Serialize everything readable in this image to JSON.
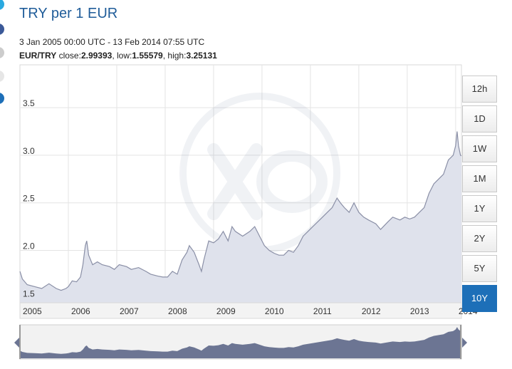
{
  "header": {
    "title": "TRY per 1 EUR",
    "date_range": "3 Jan 2005 00:00 UTC - 13 Feb 2014 07:55 UTC",
    "pair": "EUR/TRY",
    "close_label": "close:",
    "close_value": "2.99393",
    "low_label": "low:",
    "low_value": "1.55579",
    "high_label": "high:",
    "high_value": "3.25131"
  },
  "range_buttons": [
    {
      "label": "12h",
      "active": false
    },
    {
      "label": "1D",
      "active": false
    },
    {
      "label": "1W",
      "active": false
    },
    {
      "label": "1M",
      "active": false
    },
    {
      "label": "1Y",
      "active": false
    },
    {
      "label": "2Y",
      "active": false
    },
    {
      "label": "5Y",
      "active": false
    },
    {
      "label": "10Y",
      "active": true
    }
  ],
  "colors": {
    "line": "#8a8fa6",
    "fill": "#dfe2ec",
    "navigator_fill": "#6c7593",
    "active_button": "#1d6fb8",
    "title": "#1f5c99"
  },
  "chart_data": {
    "type": "area",
    "title": "TRY per 1 EUR",
    "xlabel": "",
    "ylabel": "",
    "xlim": [
      2005.0,
      2014.12
    ],
    "ylim": [
      1.45,
      3.95
    ],
    "y_ticks": [
      "1.5",
      "2.0",
      "2.5",
      "3.0",
      "3.5"
    ],
    "x_ticks": [
      "2005",
      "2006",
      "2007",
      "2008",
      "2009",
      "2010",
      "2011",
      "2012",
      "2013",
      "2014"
    ],
    "grid": true,
    "legend": "none",
    "x": [
      2005.0,
      2005.05,
      2005.15,
      2005.3,
      2005.45,
      2005.6,
      2005.75,
      2005.85,
      2005.95,
      2006.0,
      2006.08,
      2006.17,
      2006.25,
      2006.3,
      2006.35,
      2006.38,
      2006.42,
      2006.5,
      2006.6,
      2006.7,
      2006.85,
      2006.95,
      2007.05,
      2007.2,
      2007.3,
      2007.45,
      2007.6,
      2007.7,
      2007.85,
      2007.95,
      2008.05,
      2008.15,
      2008.25,
      2008.35,
      2008.45,
      2008.5,
      2008.6,
      2008.7,
      2008.75,
      2008.8,
      2008.85,
      2008.9,
      2009.0,
      2009.1,
      2009.2,
      2009.3,
      2009.38,
      2009.45,
      2009.6,
      2009.75,
      2009.85,
      2009.95,
      2010.05,
      2010.15,
      2010.25,
      2010.35,
      2010.45,
      2010.55,
      2010.65,
      2010.75,
      2010.85,
      2010.95,
      2011.05,
      2011.15,
      2011.25,
      2011.35,
      2011.45,
      2011.55,
      2011.62,
      2011.7,
      2011.8,
      2011.9,
      2012.0,
      2012.1,
      2012.2,
      2012.35,
      2012.45,
      2012.6,
      2012.7,
      2012.85,
      2012.95,
      2013.05,
      2013.15,
      2013.25,
      2013.35,
      2013.45,
      2013.55,
      2013.65,
      2013.75,
      2013.85,
      2013.95,
      2014.0,
      2014.03,
      2014.06,
      2014.1,
      2014.12
    ],
    "values": [
      1.78,
      1.7,
      1.64,
      1.62,
      1.6,
      1.65,
      1.6,
      1.58,
      1.6,
      1.62,
      1.68,
      1.67,
      1.72,
      1.85,
      2.05,
      2.1,
      1.95,
      1.85,
      1.88,
      1.85,
      1.83,
      1.8,
      1.85,
      1.83,
      1.8,
      1.82,
      1.78,
      1.75,
      1.73,
      1.72,
      1.72,
      1.78,
      1.75,
      1.9,
      1.98,
      2.05,
      1.98,
      1.85,
      1.78,
      1.9,
      2.0,
      2.1,
      2.08,
      2.12,
      2.2,
      2.1,
      2.25,
      2.2,
      2.15,
      2.2,
      2.25,
      2.15,
      2.05,
      2.0,
      1.97,
      1.95,
      1.95,
      2.0,
      1.98,
      2.05,
      2.15,
      2.2,
      2.25,
      2.3,
      2.35,
      2.4,
      2.45,
      2.55,
      2.5,
      2.45,
      2.4,
      2.5,
      2.4,
      2.35,
      2.32,
      2.28,
      2.22,
      2.3,
      2.35,
      2.32,
      2.35,
      2.33,
      2.35,
      2.4,
      2.45,
      2.6,
      2.7,
      2.75,
      2.8,
      2.95,
      3.0,
      3.1,
      3.25,
      3.1,
      3.0,
      2.99393
    ]
  }
}
